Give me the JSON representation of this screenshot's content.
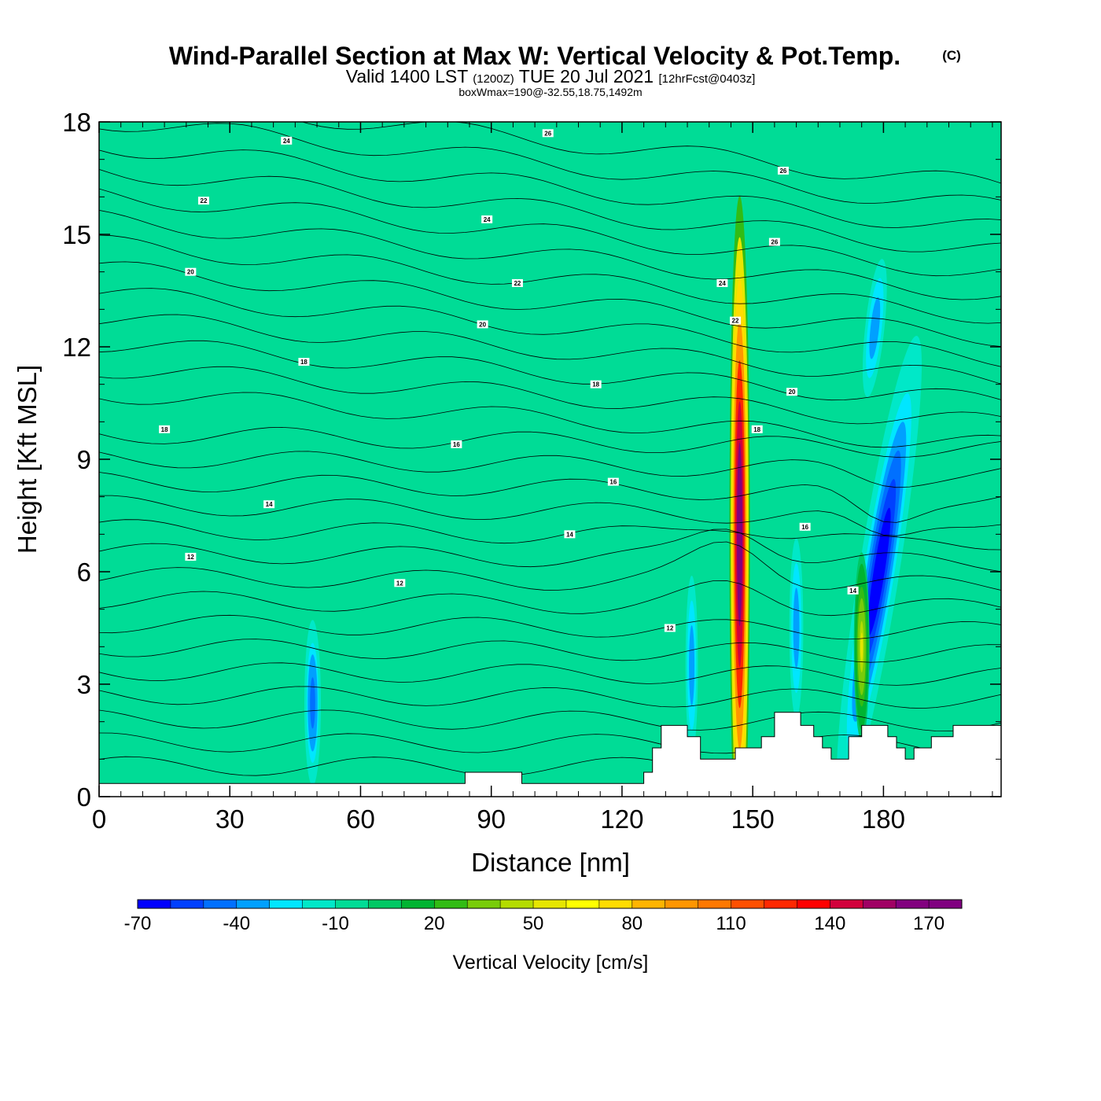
{
  "chart_data": {
    "type": "heatmap",
    "title": "Wind-Parallel Section at Max W: Vertical Velocity & Pot.Temp.",
    "title_suffix": "(C)",
    "subtitle": {
      "part1": "Valid 1400 LST",
      "part2": "(1200Z)",
      "part3": "TUE 20 Jul 2021",
      "part4": "[12hrFcst@0403z]"
    },
    "subtitle2": "boxWmax=190@-32.55,18.75,1492m",
    "xlabel": "Distance [nm]",
    "ylabel": "Height [Kft MSL]",
    "xlim": [
      0,
      207
    ],
    "ylim": [
      0,
      18
    ],
    "x_ticks": [
      "0",
      "30",
      "60",
      "90",
      "120",
      "150",
      "180"
    ],
    "y_ticks": [
      "0",
      "3",
      "6",
      "9",
      "12",
      "15",
      "18"
    ],
    "colorbar": {
      "title": "Vertical Velocity [cm/s]",
      "labels": [
        "-70",
        "-40",
        "-10",
        "20",
        "50",
        "80",
        "110",
        "140",
        "170"
      ],
      "levels": [
        -70,
        -60,
        -50,
        -40,
        -30,
        -20,
        -10,
        0,
        10,
        20,
        30,
        40,
        50,
        60,
        70,
        80,
        90,
        100,
        110,
        120,
        130,
        140,
        150,
        160,
        170,
        180
      ],
      "colors": [
        "#0000ff",
        "#0040ff",
        "#0070ff",
        "#00a0ff",
        "#00e6ff",
        "#00e8c8",
        "#00dc96",
        "#00c864",
        "#00b432",
        "#32bc14",
        "#78cc0a",
        "#b4dc00",
        "#e6e600",
        "#ffff00",
        "#ffdc00",
        "#ffb400",
        "#ff9600",
        "#ff7800",
        "#ff5000",
        "#ff2800",
        "#ff0000",
        "#d2003c",
        "#a00064",
        "#82007f",
        "#800080"
      ]
    },
    "velocity_features": [
      {
        "x": 147,
        "y_center": 7.0,
        "peak": 190
      },
      {
        "x": 179,
        "y_center": 6.0,
        "peak": -70
      },
      {
        "x": 175,
        "y_center": 4.0,
        "peak": 50
      },
      {
        "x": 136,
        "y_center": 3.5,
        "peak": -40
      },
      {
        "x": 49,
        "y_center": 2.5,
        "peak": -50
      },
      {
        "x": 160,
        "y_center": 4.5,
        "peak": -40
      },
      {
        "x": 178,
        "y_center": 12.5,
        "peak": -40
      }
    ],
    "theta_labels": [
      {
        "value": "24",
        "x": 43,
        "y": 17.5
      },
      {
        "value": "26",
        "x": 103,
        "y": 17.7
      },
      {
        "value": "26",
        "x": 157,
        "y": 16.7
      },
      {
        "value": "26",
        "x": 155,
        "y": 14.8
      },
      {
        "value": "22",
        "x": 24,
        "y": 15.9
      },
      {
        "value": "24",
        "x": 89,
        "y": 15.4
      },
      {
        "value": "20",
        "x": 21,
        "y": 14.0
      },
      {
        "value": "22",
        "x": 96,
        "y": 13.7
      },
      {
        "value": "24",
        "x": 143,
        "y": 13.7
      },
      {
        "value": "20",
        "x": 88,
        "y": 12.6
      },
      {
        "value": "22",
        "x": 146,
        "y": 12.7
      },
      {
        "value": "18",
        "x": 47,
        "y": 11.6
      },
      {
        "value": "18",
        "x": 114,
        "y": 11.0
      },
      {
        "value": "20",
        "x": 159,
        "y": 10.8
      },
      {
        "value": "18",
        "x": 15,
        "y": 9.8
      },
      {
        "value": "18",
        "x": 151,
        "y": 9.8
      },
      {
        "value": "16",
        "x": 82,
        "y": 9.4
      },
      {
        "value": "16",
        "x": 118,
        "y": 8.4
      },
      {
        "value": "14",
        "x": 39,
        "y": 7.8
      },
      {
        "value": "16",
        "x": 162,
        "y": 7.2
      },
      {
        "value": "14",
        "x": 108,
        "y": 7.0
      },
      {
        "value": "12",
        "x": 21,
        "y": 6.4
      },
      {
        "value": "12",
        "x": 69,
        "y": 5.7
      },
      {
        "value": "14",
        "x": 173,
        "y": 5.5
      },
      {
        "value": "12",
        "x": 131,
        "y": 4.5
      }
    ],
    "terrain": [
      [
        0,
        0.35
      ],
      [
        9,
        0.35
      ],
      [
        9,
        0.35
      ],
      [
        84,
        0.35
      ],
      [
        84,
        0.65
      ],
      [
        97,
        0.65
      ],
      [
        97,
        0.35
      ],
      [
        125,
        0.35
      ],
      [
        125,
        0.65
      ],
      [
        127,
        0.65
      ],
      [
        127,
        1.3
      ],
      [
        129,
        1.3
      ],
      [
        129,
        1.9
      ],
      [
        135,
        1.9
      ],
      [
        135,
        1.6
      ],
      [
        138,
        1.6
      ],
      [
        138,
        1.0
      ],
      [
        146,
        1.0
      ],
      [
        146,
        1.3
      ],
      [
        152,
        1.3
      ],
      [
        152,
        1.6
      ],
      [
        155,
        1.6
      ],
      [
        155,
        2.25
      ],
      [
        161,
        2.25
      ],
      [
        161,
        1.9
      ],
      [
        164,
        1.9
      ],
      [
        164,
        1.6
      ],
      [
        166,
        1.6
      ],
      [
        166,
        1.3
      ],
      [
        168,
        1.3
      ],
      [
        168,
        1.0
      ],
      [
        172,
        1.0
      ],
      [
        172,
        1.6
      ],
      [
        175,
        1.6
      ],
      [
        175,
        1.9
      ],
      [
        181,
        1.9
      ],
      [
        181,
        1.6
      ],
      [
        183,
        1.6
      ],
      [
        183,
        1.3
      ],
      [
        185,
        1.3
      ],
      [
        185,
        1.0
      ],
      [
        187,
        1.0
      ],
      [
        187,
        1.3
      ],
      [
        191,
        1.3
      ],
      [
        191,
        1.6
      ],
      [
        196,
        1.6
      ],
      [
        196,
        1.9
      ],
      [
        207,
        1.9
      ]
    ]
  }
}
